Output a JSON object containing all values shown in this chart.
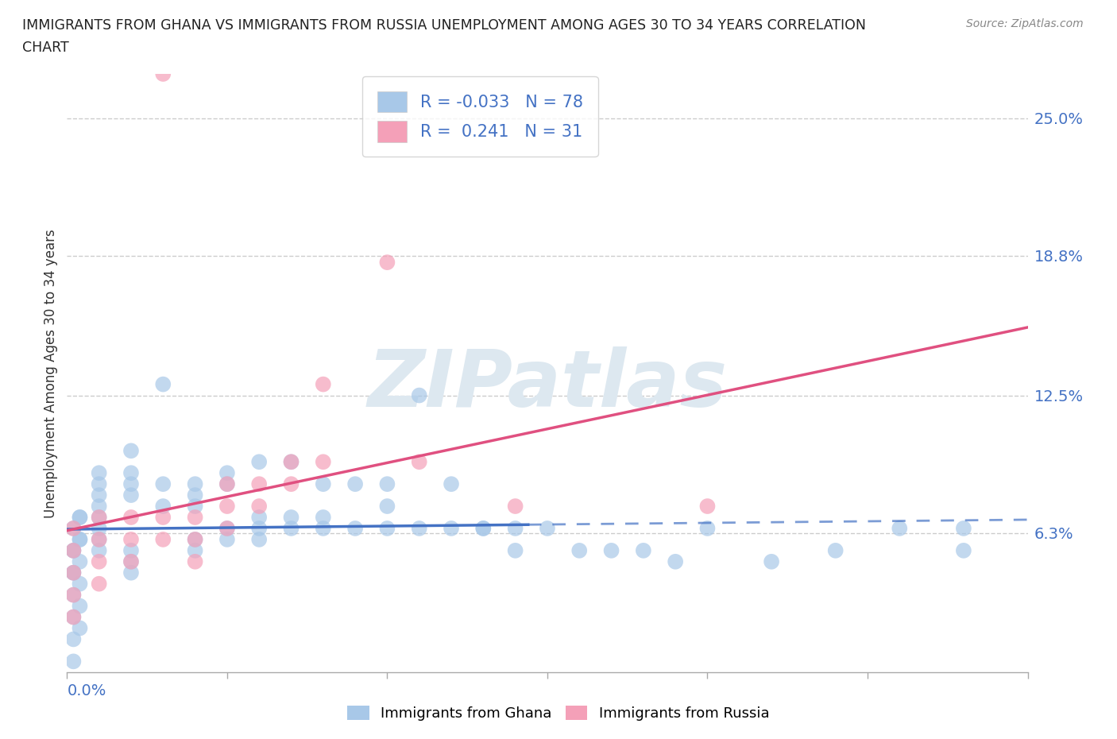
{
  "title_line1": "IMMIGRANTS FROM GHANA VS IMMIGRANTS FROM RUSSIA UNEMPLOYMENT AMONG AGES 30 TO 34 YEARS CORRELATION",
  "title_line2": "CHART",
  "source": "Source: ZipAtlas.com",
  "ylabel": "Unemployment Among Ages 30 to 34 years",
  "xlim": [
    0.0,
    0.15
  ],
  "ylim": [
    0.0,
    0.27
  ],
  "ytick_labels": [
    "6.3%",
    "12.5%",
    "18.8%",
    "25.0%"
  ],
  "ytick_vals": [
    0.063,
    0.125,
    0.188,
    0.25
  ],
  "ghana_color": "#a8c8e8",
  "russia_color": "#f4a0b8",
  "ghana_R": -0.033,
  "ghana_N": 78,
  "russia_R": 0.241,
  "russia_N": 31,
  "ghana_line_color": "#4472c4",
  "russia_line_color": "#e05080",
  "watermark_color": "#dde8f0",
  "ghana_points_x": [
    0.005,
    0.005,
    0.005,
    0.005,
    0.005,
    0.005,
    0.005,
    0.005,
    0.01,
    0.01,
    0.01,
    0.01,
    0.01,
    0.01,
    0.01,
    0.015,
    0.015,
    0.015,
    0.02,
    0.02,
    0.02,
    0.02,
    0.02,
    0.025,
    0.025,
    0.025,
    0.025,
    0.03,
    0.03,
    0.03,
    0.03,
    0.035,
    0.035,
    0.035,
    0.04,
    0.04,
    0.04,
    0.045,
    0.045,
    0.05,
    0.05,
    0.05,
    0.055,
    0.055,
    0.06,
    0.06,
    0.065,
    0.065,
    0.07,
    0.07,
    0.075,
    0.08,
    0.085,
    0.09,
    0.095,
    0.1,
    0.11,
    0.12,
    0.13,
    0.14,
    0.14,
    0.001,
    0.001,
    0.001,
    0.001,
    0.001,
    0.001,
    0.001,
    0.001,
    0.001,
    0.002,
    0.002,
    0.002,
    0.002,
    0.002,
    0.002,
    0.002,
    0.002
  ],
  "ghana_points_y": [
    0.065,
    0.07,
    0.075,
    0.08,
    0.085,
    0.09,
    0.06,
    0.055,
    0.08,
    0.085,
    0.09,
    0.1,
    0.055,
    0.05,
    0.045,
    0.13,
    0.085,
    0.075,
    0.075,
    0.08,
    0.085,
    0.06,
    0.055,
    0.085,
    0.09,
    0.065,
    0.06,
    0.095,
    0.07,
    0.065,
    0.06,
    0.095,
    0.07,
    0.065,
    0.085,
    0.07,
    0.065,
    0.085,
    0.065,
    0.085,
    0.075,
    0.065,
    0.125,
    0.065,
    0.085,
    0.065,
    0.065,
    0.065,
    0.065,
    0.055,
    0.065,
    0.055,
    0.055,
    0.055,
    0.05,
    0.065,
    0.05,
    0.055,
    0.065,
    0.065,
    0.055,
    0.065,
    0.055,
    0.045,
    0.035,
    0.025,
    0.015,
    0.005,
    0.045,
    0.055,
    0.07,
    0.06,
    0.05,
    0.04,
    0.03,
    0.02,
    0.06,
    0.07
  ],
  "russia_points_x": [
    0.001,
    0.001,
    0.001,
    0.001,
    0.001,
    0.005,
    0.005,
    0.005,
    0.005,
    0.01,
    0.01,
    0.01,
    0.015,
    0.015,
    0.02,
    0.02,
    0.02,
    0.025,
    0.025,
    0.025,
    0.03,
    0.03,
    0.035,
    0.035,
    0.04,
    0.05,
    0.055,
    0.07,
    0.1,
    0.015,
    0.04
  ],
  "russia_points_y": [
    0.065,
    0.055,
    0.045,
    0.035,
    0.025,
    0.07,
    0.06,
    0.05,
    0.04,
    0.07,
    0.06,
    0.05,
    0.07,
    0.06,
    0.07,
    0.06,
    0.05,
    0.085,
    0.075,
    0.065,
    0.085,
    0.075,
    0.095,
    0.085,
    0.13,
    0.185,
    0.095,
    0.075,
    0.075,
    0.27,
    0.095
  ]
}
